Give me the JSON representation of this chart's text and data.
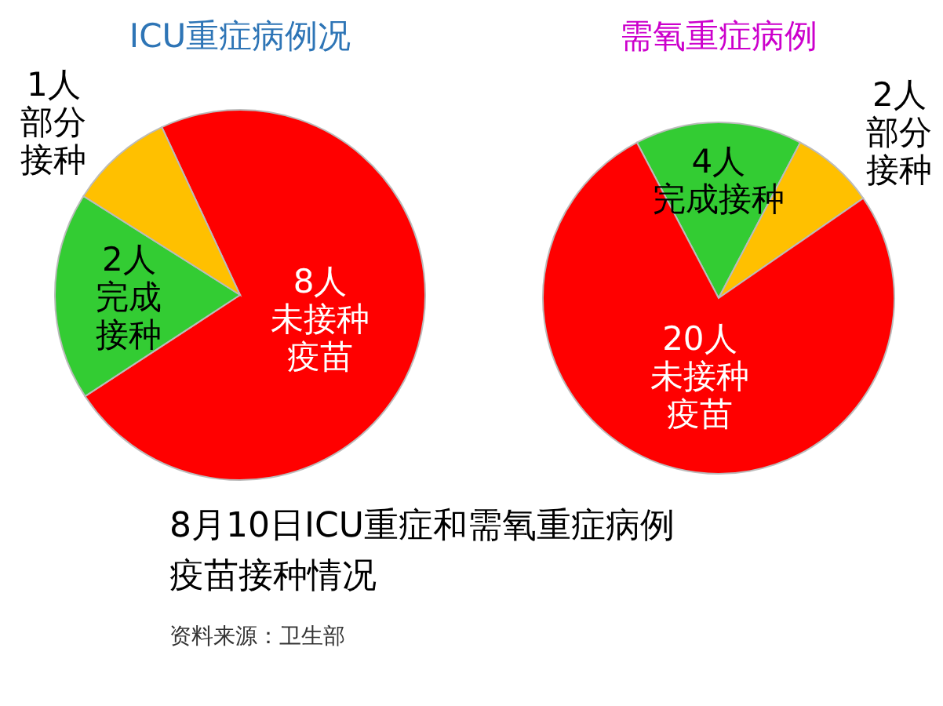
{
  "chart_data": [
    {
      "type": "pie",
      "title": "ICU重症病例况",
      "categories": [
        "未接种疫苗",
        "完成接种",
        "部分接种"
      ],
      "values": [
        8,
        2,
        1
      ],
      "colors": [
        "#ff0000",
        "#33cc33",
        "#ffc000"
      ],
      "value_labels": [
        "8人",
        "2人",
        "1人"
      ]
    },
    {
      "type": "pie",
      "title": "需氧重症病例",
      "categories": [
        "完成接种",
        "部分接种",
        "未接种疫苗"
      ],
      "values": [
        4,
        2,
        20
      ],
      "colors": [
        "#33cc33",
        "#ffc000",
        "#ff0000"
      ],
      "value_labels": [
        "4人",
        "2人",
        "20人"
      ]
    },
    {
      "type": "other",
      "title": "8月10日ICU重症和需氧重症病例疫苗接种情况",
      "annotations": [
        "资料来源：卫生部"
      ]
    }
  ]
}
